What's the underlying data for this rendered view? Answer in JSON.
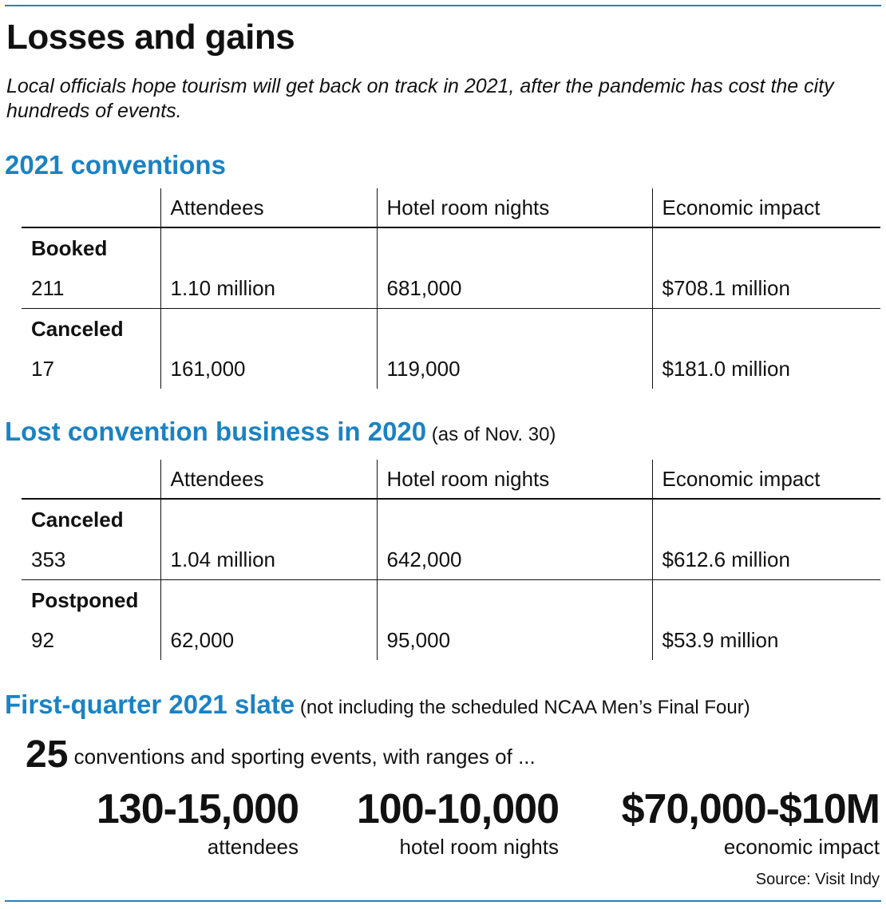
{
  "title": "Losses and gains",
  "subtitle": "Local officials hope tourism will get back on track in 2021, after the pandemic has cost the city hundreds of events.",
  "columns": [
    "",
    "Attendees",
    "Hotel room nights",
    "Economic impact"
  ],
  "section_2021": {
    "heading": "2021 conventions",
    "groups": [
      {
        "label": "Booked",
        "count": "211",
        "attendees": "1.10 million",
        "nights": "681,000",
        "impact": "$708.1 million"
      },
      {
        "label": "Canceled",
        "count": "17",
        "attendees": "161,000",
        "nights": "119,000",
        "impact": "$181.0 million"
      }
    ]
  },
  "section_2020": {
    "heading": "Lost convention business in 2020",
    "note": " (as of Nov. 30)",
    "groups": [
      {
        "label": "Canceled",
        "count": "353",
        "attendees": "1.04 million",
        "nights": "642,000",
        "impact": "$612.6 million"
      },
      {
        "label": "Postponed",
        "count": "92",
        "attendees": "62,000",
        "nights": "95,000",
        "impact": "$53.9 million"
      }
    ]
  },
  "slate": {
    "heading": "First-quarter 2021 slate",
    "note": " (not including the scheduled NCAA Men’s Final Four)",
    "count": "25",
    "count_text": " conventions and sporting events, with ranges of ...",
    "ranges": [
      {
        "value": "130-15,000",
        "label": "attendees"
      },
      {
        "value": "100-10,000",
        "label": "hotel room nights"
      },
      {
        "value": "$70,000-$10M",
        "label": "economic impact"
      }
    ]
  },
  "source": "Source: Visit Indy",
  "colors": {
    "accent": "#1a82c4",
    "text": "#111111"
  }
}
